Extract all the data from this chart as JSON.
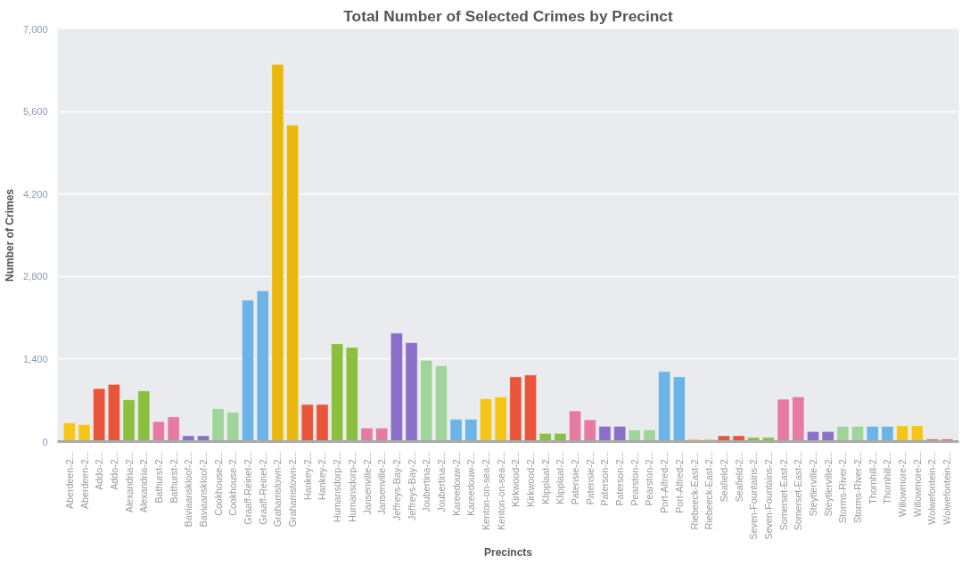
{
  "chart_data": {
    "type": "bar",
    "title": "Total Number of Selected Crimes by Precinct",
    "xlabel": "Precincts",
    "ylabel": "Number of Crimes",
    "categories": [
      "Aberdeen-2...",
      "Aberdeen-2...",
      "Addo-2...",
      "Addo-2...",
      "Alexandria-2...",
      "Alexandria-2...",
      "Bathurst-2...",
      "Bathurst-2...",
      "Baviaanskloof-2...",
      "Baviaanskloof-2...",
      "Cookhouse-2...",
      "Cookhouse-2...",
      "Graaff-Reinet-2...",
      "Graaff-Reinet-2...",
      "Grahamstown-2...",
      "Grahamstown-2...",
      "Hankey-2...",
      "Hankey-2...",
      "Humansdorp-2...",
      "Humansdorp-2...",
      "Jansenville-2...",
      "Jansenville-2...",
      "Jeffreys-Bay-2...",
      "Jeffreys-Bay-2...",
      "Joubertina-2...",
      "Joubertina-2...",
      "Kareedouw-2...",
      "Kareedouw-2...",
      "Kenton-on-sea-2...",
      "Kenton-on-sea-2...",
      "Kirkwood-2...",
      "Kirkwood-2...",
      "Klipplaat-2...",
      "Klipplaat-2...",
      "Patensie-2...",
      "Patensie-2...",
      "Paterson-2...",
      "Paterson-2...",
      "Pearston-2...",
      "Pearston-2...",
      "Port-Alfred-2...",
      "Port-Alfred-2...",
      "Riebeeck-East-2...",
      "Riebeeck-East-2...",
      "Seafield-2...",
      "Seafield-2...",
      "Seven-Fountains-2...",
      "Seven-Fountains-2...",
      "Somerset-East-2...",
      "Somerset-East-2...",
      "Steytlerville-2...",
      "Steytlerville-2...",
      "Storms-River-2...",
      "Storms-River-2...",
      "Thornhill-2...",
      "Thornhill-2...",
      "Willowmore-2...",
      "Willowmore-2...",
      "Wolwefontein-2...",
      "Wolwefontein-2..."
    ],
    "values": [
      320,
      290,
      900,
      970,
      710,
      860,
      340,
      420,
      100,
      100,
      560,
      500,
      2400,
      2560,
      6400,
      5370,
      630,
      630,
      1660,
      1600,
      230,
      230,
      1840,
      1680,
      1380,
      1290,
      380,
      380,
      730,
      760,
      1100,
      1130,
      140,
      140,
      520,
      370,
      260,
      260,
      200,
      200,
      1190,
      1100,
      40,
      40,
      100,
      100,
      70,
      70,
      720,
      760,
      170,
      170,
      260,
      260,
      260,
      260,
      270,
      270,
      40,
      40
    ],
    "colors": [
      "#f5c518",
      "#f5c518",
      "#e8553a",
      "#e8553a",
      "#8cbf3f",
      "#8cbf3f",
      "#e67aa0",
      "#e67aa0",
      "#8a70c8",
      "#8a70c8",
      "#9fd49a",
      "#9fd49a",
      "#6cb4e6",
      "#6cb4e6",
      "#e8b80c",
      "#e8b80c",
      "#e8553a",
      "#e8553a",
      "#8cbf3f",
      "#8cbf3f",
      "#e67aa0",
      "#e67aa0",
      "#8a70c8",
      "#8a70c8",
      "#9fd49a",
      "#9fd49a",
      "#6cb4e6",
      "#6cb4e6",
      "#f5c518",
      "#f5c518",
      "#e8553a",
      "#e8553a",
      "#8cbf3f",
      "#8cbf3f",
      "#e67aa0",
      "#e67aa0",
      "#8a70c8",
      "#8a70c8",
      "#9fd49a",
      "#9fd49a",
      "#6cb4e6",
      "#6cb4e6",
      "#f5c518",
      "#f5c518",
      "#e8553a",
      "#e8553a",
      "#8cbf3f",
      "#8cbf3f",
      "#e67aa0",
      "#e67aa0",
      "#8a70c8",
      "#8a70c8",
      "#9fd49a",
      "#9fd49a",
      "#6cb4e6",
      "#6cb4e6",
      "#f5c518",
      "#f5c518",
      "#e8553a",
      "#e8553a"
    ],
    "ylim": [
      0,
      7000
    ],
    "yticks": [
      0,
      {
        "value": 1400,
        "label": "1,400"
      },
      {
        "value": 2800,
        "label": "2,800"
      },
      {
        "value": 4200,
        "label": "4,200"
      },
      {
        "value": 5600,
        "label": "5,600"
      },
      {
        "value": 7000,
        "label": "7,000"
      }
    ],
    "grid": "y"
  }
}
